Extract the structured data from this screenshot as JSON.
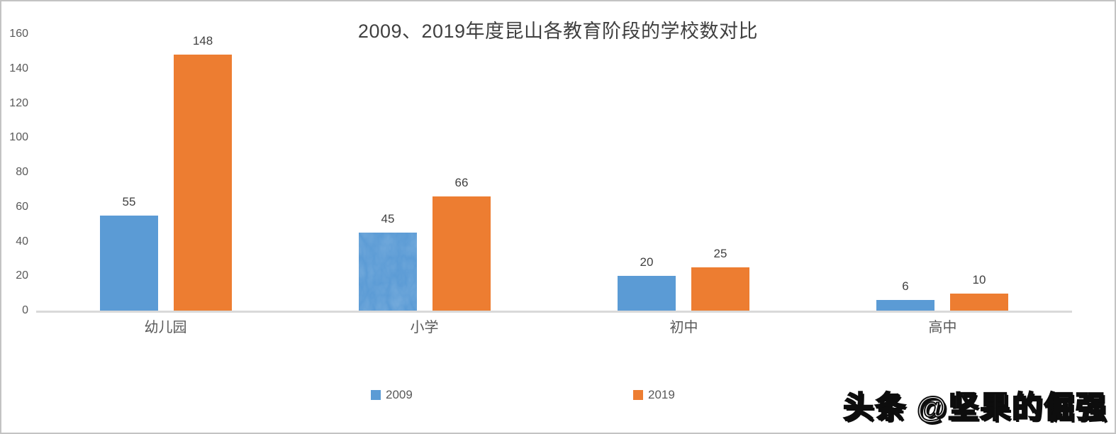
{
  "chart_data": {
    "type": "bar",
    "title": "2009、2019年度昆山各教育阶段的学校数对比",
    "categories": [
      "幼儿园",
      "小学",
      "初中",
      "高中"
    ],
    "series": [
      {
        "name": "2009",
        "color": "#5B9BD5",
        "values": [
          55,
          45,
          20,
          6
        ]
      },
      {
        "name": "2019",
        "color": "#ED7D31",
        "values": [
          148,
          66,
          25,
          10
        ]
      }
    ],
    "ylim": [
      0,
      160
    ],
    "yticks": [
      0,
      20,
      40,
      60,
      80,
      100,
      120,
      140,
      160
    ],
    "xlabel": "",
    "ylabel": "",
    "grid": false,
    "legend_position": "bottom",
    "data_labels": true,
    "textured_bar": {
      "series_index": 0,
      "category_index": 1,
      "note": "marble texture fill"
    }
  },
  "watermark": {
    "text": "头条 @坚果的倔强"
  },
  "colors": {
    "series_2009": "#5B9BD5",
    "series_2019": "#ED7D31",
    "axis_line": "#d9d9d9",
    "title_text": "#404040",
    "tick_text": "#595959",
    "value_label_text": "#404040",
    "frame_border": "#c3c3c3",
    "background": "#ffffff"
  }
}
